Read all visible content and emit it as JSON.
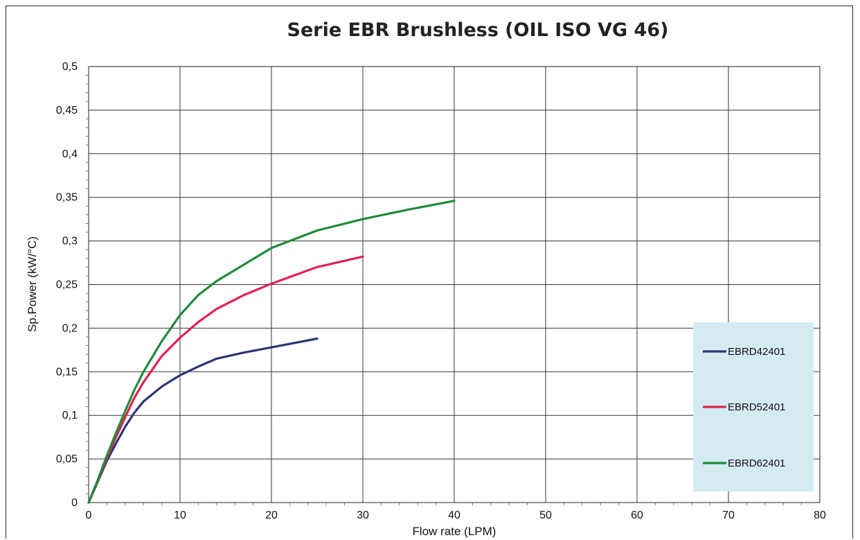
{
  "chart_data": {
    "type": "line",
    "title": "Serie EBR Brushless (OIL ISO VG 46)",
    "xlabel": "Flow rate (LPM)",
    "ylabel": "Sp.Power (kW/°C)",
    "xlim": [
      0,
      80
    ],
    "ylim": [
      0,
      0.5
    ],
    "x_ticks": [
      0,
      10,
      20,
      30,
      40,
      50,
      60,
      70,
      80
    ],
    "x_tick_labels": [
      "0",
      "10",
      "20",
      "30",
      "40",
      "50",
      "60",
      "70",
      "80"
    ],
    "y_ticks": [
      0,
      0.05,
      0.1,
      0.15,
      0.2,
      0.25,
      0.3,
      0.35,
      0.4,
      0.45,
      0.5
    ],
    "y_tick_labels": [
      "0",
      "0,05",
      "0,1",
      "0,15",
      "0,2",
      "0,25",
      "0,3",
      "0,35",
      "0,4",
      "0,45",
      "0,5"
    ],
    "grid": true,
    "legend_position": "right",
    "legend_background": "#d4ebf2",
    "series": [
      {
        "name": "EBRD42401",
        "color": "#2b3674",
        "points": [
          [
            0,
            0
          ],
          [
            1,
            0.024
          ],
          [
            2,
            0.048
          ],
          [
            3,
            0.068
          ],
          [
            4,
            0.087
          ],
          [
            5,
            0.103
          ],
          [
            6,
            0.116
          ],
          [
            8,
            0.133
          ],
          [
            10,
            0.146
          ],
          [
            12,
            0.156
          ],
          [
            14,
            0.165
          ],
          [
            17,
            0.172
          ],
          [
            20,
            0.178
          ],
          [
            25,
            0.188
          ]
        ]
      },
      {
        "name": "EBRD52401",
        "color": "#e0214f",
        "points": [
          [
            0,
            0
          ],
          [
            1,
            0.025
          ],
          [
            2,
            0.051
          ],
          [
            3,
            0.075
          ],
          [
            4,
            0.098
          ],
          [
            5,
            0.12
          ],
          [
            6,
            0.138
          ],
          [
            8,
            0.168
          ],
          [
            10,
            0.189
          ],
          [
            12,
            0.207
          ],
          [
            14,
            0.222
          ],
          [
            17,
            0.238
          ],
          [
            20,
            0.251
          ],
          [
            25,
            0.27
          ],
          [
            30,
            0.282
          ]
        ]
      },
      {
        "name": "EBRD62401",
        "color": "#1f8a3a",
        "points": [
          [
            0,
            0
          ],
          [
            1,
            0.026
          ],
          [
            2,
            0.054
          ],
          [
            3,
            0.08
          ],
          [
            4,
            0.105
          ],
          [
            5,
            0.129
          ],
          [
            6,
            0.15
          ],
          [
            8,
            0.185
          ],
          [
            10,
            0.215
          ],
          [
            12,
            0.238
          ],
          [
            14,
            0.254
          ],
          [
            17,
            0.273
          ],
          [
            20,
            0.292
          ],
          [
            25,
            0.312
          ],
          [
            30,
            0.325
          ],
          [
            35,
            0.336
          ],
          [
            40,
            0.346
          ]
        ]
      }
    ]
  }
}
